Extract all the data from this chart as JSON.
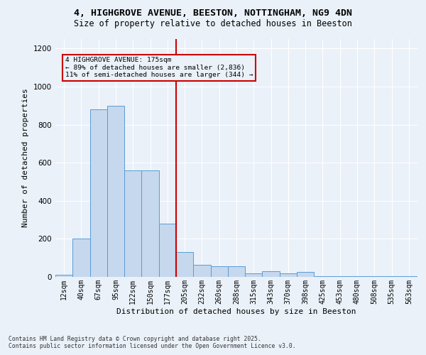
{
  "title_line1": "4, HIGHGROVE AVENUE, BEESTON, NOTTINGHAM, NG9 4DN",
  "title_line2": "Size of property relative to detached houses in Beeston",
  "xlabel": "Distribution of detached houses by size in Beeston",
  "ylabel": "Number of detached properties",
  "footnote": "Contains HM Land Registry data © Crown copyright and database right 2025.\nContains public sector information licensed under the Open Government Licence v3.0.",
  "bar_labels": [
    "12sqm",
    "40sqm",
    "67sqm",
    "95sqm",
    "122sqm",
    "150sqm",
    "177sqm",
    "205sqm",
    "232sqm",
    "260sqm",
    "288sqm",
    "315sqm",
    "343sqm",
    "370sqm",
    "398sqm",
    "425sqm",
    "453sqm",
    "480sqm",
    "508sqm",
    "535sqm",
    "563sqm"
  ],
  "bar_values": [
    10,
    200,
    880,
    900,
    560,
    560,
    280,
    130,
    65,
    55,
    55,
    20,
    30,
    20,
    25,
    5,
    5,
    5,
    5,
    5,
    5
  ],
  "bar_color": "#c5d8ed",
  "bar_edge_color": "#5b9bd5",
  "vline_color": "#cc0000",
  "vline_bar_index": 6,
  "annotation_text": "4 HIGHGROVE AVENUE: 175sqm\n← 89% of detached houses are smaller (2,836)\n11% of semi-detached houses are larger (344) →",
  "annotation_box_color": "#cc0000",
  "ylim": [
    0,
    1250
  ],
  "yticks": [
    0,
    200,
    400,
    600,
    800,
    1000,
    1200
  ],
  "background_color": "#eaf1f9",
  "grid_color": "#ffffff"
}
